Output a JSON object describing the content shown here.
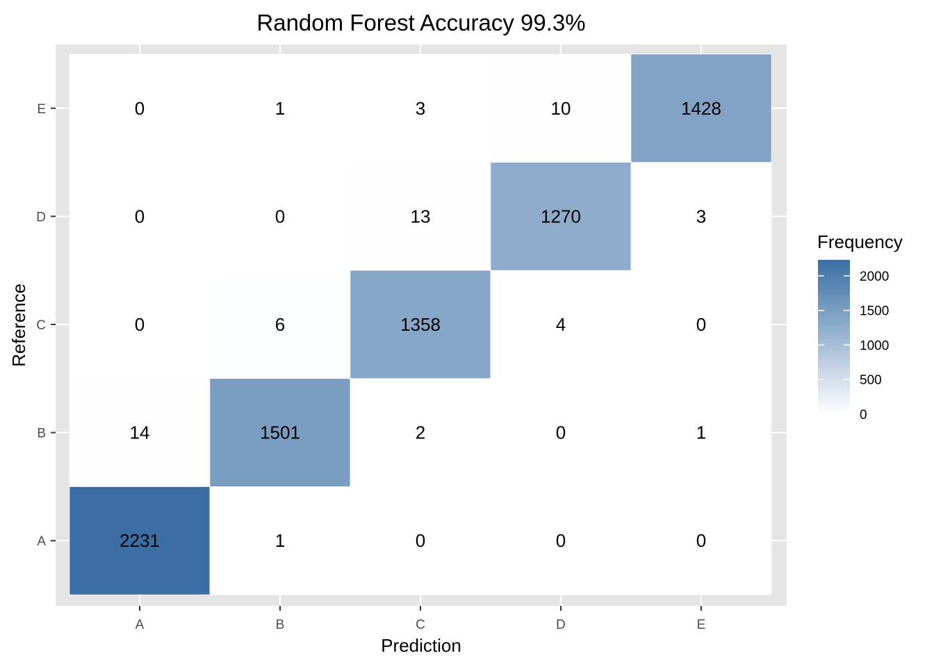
{
  "chart_data": {
    "type": "heatmap",
    "title": "Random Forest Accuracy 99.3%",
    "xlabel": "Prediction",
    "ylabel": "Reference",
    "x_categories": [
      "A",
      "B",
      "C",
      "D",
      "E"
    ],
    "y_categories": [
      "A",
      "B",
      "C",
      "D",
      "E"
    ],
    "values": [
      [
        2231,
        1,
        0,
        0,
        0
      ],
      [
        14,
        1501,
        2,
        0,
        1
      ],
      [
        0,
        6,
        1358,
        4,
        0
      ],
      [
        0,
        0,
        13,
        1270,
        3
      ],
      [
        0,
        1,
        3,
        10,
        1428
      ]
    ],
    "legend": {
      "title": "Frequency",
      "ticks": [
        0,
        500,
        1000,
        1500,
        2000
      ],
      "limits": [
        0,
        2231
      ],
      "low_color": "#ffffff",
      "high_color": "#3a6ea5"
    },
    "grid": true,
    "legend_position": "right"
  }
}
